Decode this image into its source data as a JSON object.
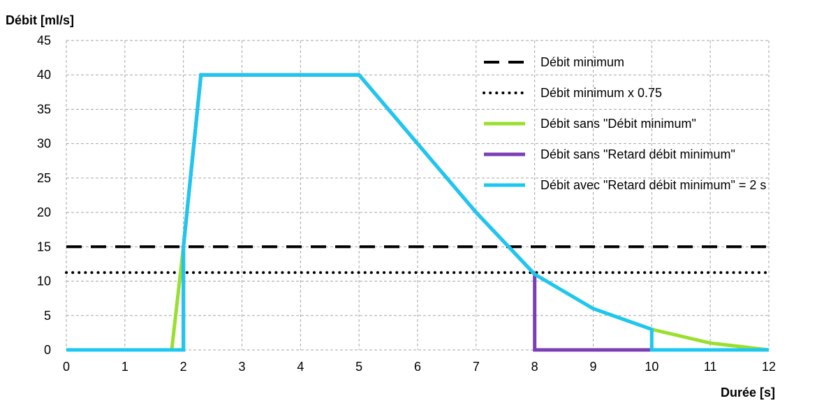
{
  "chart_data": {
    "type": "line",
    "title": "",
    "ylabel": "Débit [ml/s]",
    "xlabel": "Durée [s]",
    "xlim": [
      0,
      12
    ],
    "ylim": [
      0,
      45
    ],
    "x_ticks": [
      0,
      1,
      2,
      3,
      4,
      5,
      6,
      7,
      8,
      9,
      10,
      11,
      12
    ],
    "y_ticks": [
      0,
      5,
      10,
      15,
      20,
      25,
      30,
      35,
      40,
      45
    ],
    "grid": true,
    "legend_position": "top-right",
    "series": [
      {
        "name": "Débit minimum",
        "style": "dashed",
        "color": "#000000",
        "x": [
          0,
          12
        ],
        "y": [
          15,
          15
        ]
      },
      {
        "name": "Débit minimum x 0.75",
        "style": "dotted",
        "color": "#000000",
        "x": [
          0,
          12
        ],
        "y": [
          11.25,
          11.25
        ]
      },
      {
        "name": "Débit sans \"Débit minimum\"",
        "style": "solid",
        "color": "#99e02e",
        "x": [
          0,
          1.8,
          2,
          2.3,
          5,
          6,
          7,
          8,
          9,
          10,
          11,
          12
        ],
        "y": [
          0,
          0,
          15,
          40,
          40,
          30,
          20,
          11,
          6,
          3,
          1,
          0
        ]
      },
      {
        "name": "Débit sans \"Retard débit minimum\"",
        "style": "solid",
        "color": "#7b3fb5",
        "x": [
          0,
          2,
          2,
          2.3,
          5,
          6,
          7,
          8,
          8,
          12
        ],
        "y": [
          0,
          0,
          15,
          40,
          40,
          30,
          20,
          11,
          0,
          0
        ]
      },
      {
        "name": "Débit avec \"Retard débit minimum\" = 2 s",
        "style": "solid",
        "color": "#1cc7f2",
        "x": [
          0,
          2,
          2,
          2.3,
          5,
          6,
          7,
          8,
          9,
          10,
          10,
          12
        ],
        "y": [
          0,
          0,
          15,
          40,
          40,
          30,
          20,
          11,
          6,
          3,
          0,
          0
        ]
      }
    ]
  }
}
